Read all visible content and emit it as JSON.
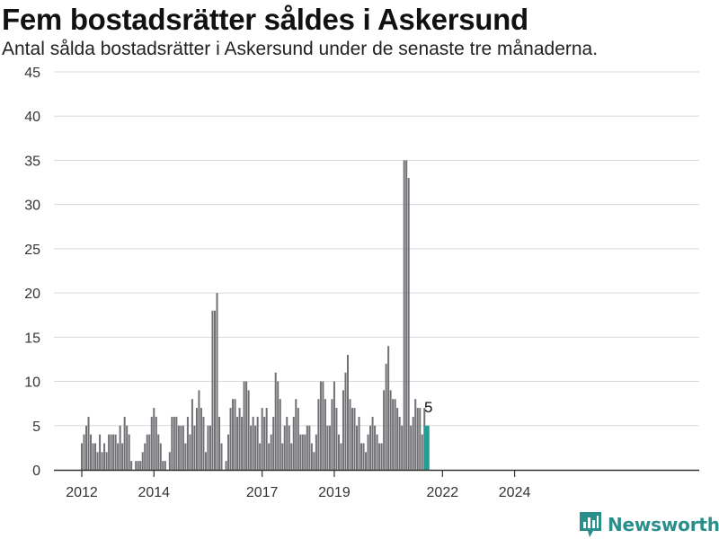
{
  "header": {
    "title": "Fem bostadsrätter såldes i Askersund",
    "subtitle": "Antal sålda bostadsrätter i Askersund under de senaste tre månaderna."
  },
  "brand": {
    "name": "Newsworthy",
    "icon": "newsworthy-logo-icon",
    "color": "#2a8f8b"
  },
  "colors": {
    "bar": "#717075",
    "highlight": "#239c95",
    "grid": "#d9d9d9",
    "axis": "#333333"
  },
  "chart_data": {
    "type": "bar",
    "title": "Fem bostadsrätter såldes i Askersund",
    "subtitle": "Antal sålda bostadsrätter i Askersund under de senaste tre månaderna.",
    "xlabel": "",
    "ylabel": "",
    "ylim": [
      0,
      45
    ],
    "yticks": [
      0,
      5,
      10,
      15,
      20,
      25,
      30,
      35,
      40,
      45
    ],
    "xticks": [
      {
        "label": "2012",
        "index": 0
      },
      {
        "label": "2014",
        "index": 8
      },
      {
        "label": "2017",
        "index": 20
      },
      {
        "label": "2019",
        "index": 28
      },
      {
        "label": "2022",
        "index": 40
      },
      {
        "label": "2024",
        "index": 48
      }
    ],
    "period": "rolling three-month windows, one bar per quarter step (~2012 to 2024)",
    "grid": true,
    "values": [
      3,
      4,
      5,
      6,
      4,
      3,
      3,
      2,
      4,
      2,
      3,
      2,
      4,
      4,
      4,
      4,
      3,
      5,
      3,
      6,
      5,
      4,
      1,
      0,
      1,
      1,
      1,
      2,
      3,
      4,
      4,
      6,
      7,
      6,
      4,
      3,
      1,
      1,
      0,
      2,
      6,
      6,
      6,
      5,
      5,
      5,
      3,
      6,
      4,
      8,
      5,
      7,
      9,
      7,
      6,
      2,
      5,
      5,
      18,
      18,
      20,
      6,
      3,
      0,
      1,
      4,
      7,
      8,
      8,
      6,
      7,
      6,
      10,
      10,
      9,
      5,
      6,
      5,
      6,
      3,
      7,
      6,
      7,
      3,
      4,
      6,
      11,
      10,
      8,
      3,
      5,
      6,
      5,
      3,
      6,
      8,
      7,
      4,
      4,
      4,
      5,
      5,
      3,
      2,
      4,
      8,
      10,
      10,
      8,
      5,
      5,
      8,
      10,
      7,
      4,
      3,
      9,
      11,
      13,
      8,
      7,
      7,
      5,
      6,
      3,
      3,
      2,
      4,
      5,
      6,
      5,
      4,
      3,
      3,
      9,
      12,
      14,
      9,
      8,
      8,
      7,
      6,
      5,
      35,
      35,
      33,
      5,
      6,
      8,
      7,
      7,
      4,
      7,
      5
    ],
    "highlight_last": true,
    "last_label": "5"
  }
}
